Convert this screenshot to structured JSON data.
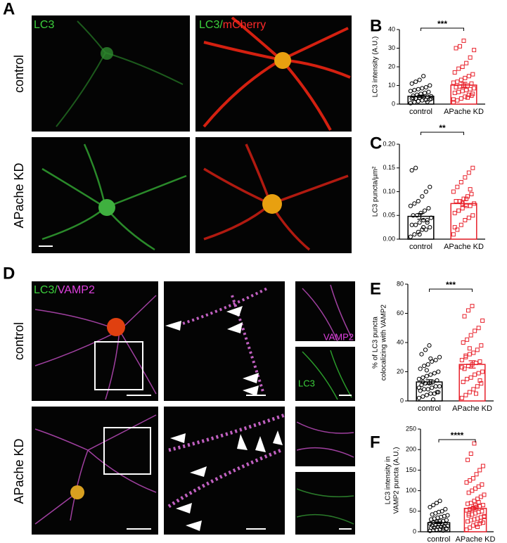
{
  "figure": {
    "panel_labels": [
      "A",
      "B",
      "C",
      "D",
      "E",
      "F"
    ],
    "row_labels_a": [
      "control",
      "APache KD"
    ],
    "row_labels_d": [
      "control",
      "APache KD"
    ],
    "image_labels": {
      "a_lc3": "LC3",
      "a_merge": [
        "LC3/",
        "mCherry"
      ],
      "d_merge": [
        "LC3/",
        "VAMP2"
      ],
      "d_vamp2": "VAMP2",
      "d_lc3": "LC3"
    }
  },
  "chart_data": [
    {
      "type": "bar",
      "ylabel": [
        "LC3 intensity (A.U.)"
      ],
      "categories": [
        "control",
        "APache KD"
      ],
      "colors": [
        "#000000",
        "#e8202a"
      ],
      "values": [
        4.2,
        10.2
      ],
      "errors": [
        0.6,
        1.5
      ],
      "significance": "***",
      "ylim": [
        0,
        40
      ],
      "yticks": [
        0,
        10,
        20,
        30,
        40
      ],
      "points": [
        [
          0.5,
          1,
          1.5,
          2,
          2.2,
          2.5,
          3,
          3,
          3.5,
          3.8,
          4,
          4.2,
          4.5,
          5,
          5.5,
          6,
          6.5,
          7,
          7.5,
          8,
          8.5,
          9,
          10,
          11,
          12,
          13,
          15,
          1.2,
          2.8,
          3.3
        ],
        [
          1,
          2,
          3,
          4,
          5,
          5.5,
          6,
          6.5,
          7,
          7.5,
          8,
          8.5,
          9,
          9.5,
          10,
          10,
          11,
          11.5,
          12,
          13,
          14,
          15,
          16,
          17,
          19,
          20,
          22,
          25,
          29,
          30,
          31,
          34,
          3.5,
          4.5,
          2.5
        ]
      ]
    },
    {
      "type": "bar",
      "ylabel": [
        "LC3 puncta/µm²"
      ],
      "categories": [
        "control",
        "APache KD"
      ],
      "colors": [
        "#000000",
        "#e8202a"
      ],
      "values": [
        0.048,
        0.075
      ],
      "errors": [
        0.006,
        0.006
      ],
      "significance": "**",
      "ylim": [
        0,
        0.2
      ],
      "yticks": [
        {
          "value": 0,
          "label": "0.00"
        },
        {
          "value": 0.05,
          "label": "0.05"
        },
        {
          "value": 0.1,
          "label": "0.10"
        },
        {
          "value": 0.15,
          "label": "0.15"
        },
        {
          "value": 0.2,
          "label": "0.20"
        }
      ],
      "points": [
        [
          0.005,
          0.01,
          0.015,
          0.02,
          0.02,
          0.025,
          0.03,
          0.03,
          0.035,
          0.04,
          0.04,
          0.045,
          0.05,
          0.05,
          0.055,
          0.06,
          0.065,
          0.07,
          0.075,
          0.08,
          0.09,
          0.1,
          0.11,
          0.145,
          0.15,
          0.01,
          0.025,
          0.035
        ],
        [
          0.01,
          0.02,
          0.03,
          0.04,
          0.045,
          0.05,
          0.055,
          0.06,
          0.065,
          0.07,
          0.07,
          0.075,
          0.08,
          0.08,
          0.085,
          0.09,
          0.095,
          0.1,
          0.11,
          0.12,
          0.13,
          0.14,
          0.15,
          0.025,
          0.06,
          0.075,
          0.085,
          0.105
        ]
      ]
    },
    {
      "type": "bar",
      "ylabel": [
        "% of LC3 puncta",
        "colocalizing with VAMP2"
      ],
      "categories": [
        "control",
        "APache KD"
      ],
      "colors": [
        "#000000",
        "#e8202a"
      ],
      "values": [
        13,
        25
      ],
      "errors": [
        1.5,
        2.5
      ],
      "significance": "***",
      "ylim": [
        0,
        80
      ],
      "yticks": [
        0,
        20,
        40,
        60,
        80
      ],
      "points": [
        [
          2,
          3,
          4,
          5,
          5,
          6,
          7,
          8,
          8,
          9,
          10,
          10,
          11,
          12,
          12,
          13,
          14,
          15,
          16,
          17,
          18,
          19,
          20,
          22,
          24,
          25,
          27,
          28,
          30,
          32,
          35,
          38,
          1,
          6,
          9,
          13,
          21,
          29
        ],
        [
          2,
          4,
          6,
          8,
          10,
          12,
          13,
          15,
          16,
          18,
          19,
          20,
          22,
          24,
          25,
          26,
          27,
          28,
          30,
          32,
          33,
          35,
          38,
          40,
          42,
          45,
          48,
          50,
          55,
          58,
          62,
          65,
          5,
          14,
          23,
          31,
          36
        ]
      ]
    },
    {
      "type": "bar",
      "ylabel": [
        "LC3 intensity in",
        "VAMP2 puncta (A.U.)"
      ],
      "categories": [
        "control",
        "APache KD"
      ],
      "colors": [
        "#000000",
        "#e8202a"
      ],
      "values": [
        22,
        57
      ],
      "errors": [
        2,
        4
      ],
      "significance": "****",
      "ylim": [
        0,
        250
      ],
      "yticks": [
        0,
        50,
        100,
        150,
        200,
        250
      ],
      "points": [
        [
          2,
          4,
          5,
          6,
          8,
          8,
          10,
          10,
          12,
          12,
          14,
          14,
          15,
          16,
          18,
          18,
          20,
          20,
          22,
          24,
          25,
          26,
          28,
          30,
          32,
          34,
          36,
          38,
          40,
          42,
          45,
          48,
          50,
          55,
          60,
          65,
          70,
          75,
          3,
          7
        ],
        [
          5,
          10,
          15,
          18,
          20,
          22,
          25,
          28,
          30,
          32,
          35,
          38,
          40,
          42,
          45,
          48,
          50,
          52,
          55,
          58,
          60,
          62,
          65,
          68,
          70,
          75,
          80,
          85,
          90,
          95,
          100,
          105,
          110,
          115,
          120,
          125,
          130,
          140,
          150,
          160,
          175,
          190,
          215,
          12,
          26,
          36,
          44,
          54,
          64,
          72
        ]
      ]
    }
  ]
}
